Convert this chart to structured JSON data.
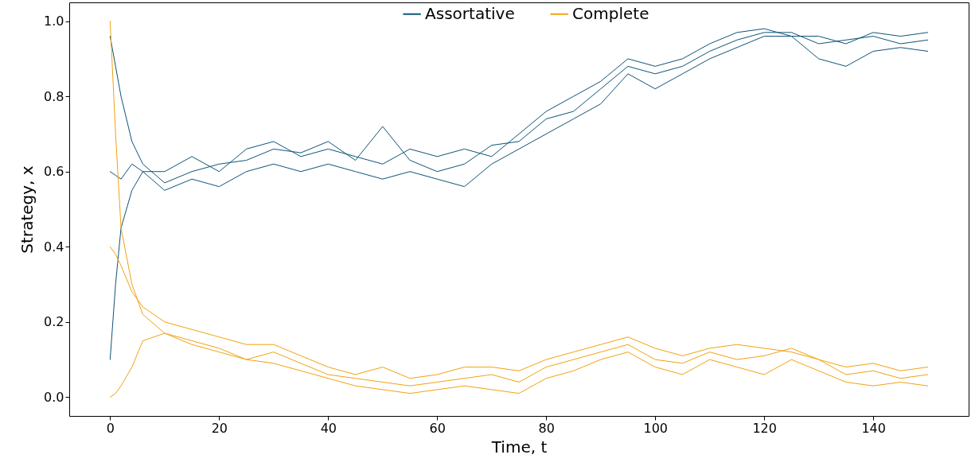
{
  "chart_data": {
    "type": "line",
    "xlabel": "Time, t",
    "ylabel": "Strategy, x",
    "x": [
      0,
      1,
      2,
      4,
      6,
      10,
      15,
      20,
      25,
      30,
      35,
      40,
      45,
      50,
      55,
      60,
      65,
      70,
      75,
      80,
      85,
      90,
      95,
      100,
      105,
      110,
      115,
      120,
      125,
      130,
      135,
      140,
      145,
      150
    ],
    "series": [
      {
        "name": "Assortative",
        "color": "#0d5478",
        "values": [
          0.96,
          0.88,
          0.8,
          0.68,
          0.62,
          0.57,
          0.6,
          0.62,
          0.63,
          0.66,
          0.65,
          0.68,
          0.63,
          0.72,
          0.63,
          0.6,
          0.62,
          0.67,
          0.68,
          0.74,
          0.76,
          0.82,
          0.88,
          0.86,
          0.88,
          0.92,
          0.95,
          0.97,
          0.97,
          0.94,
          0.95,
          0.96,
          0.94,
          0.95
        ]
      },
      {
        "color": "#0d5478",
        "values": [
          0.1,
          0.3,
          0.45,
          0.55,
          0.6,
          0.55,
          0.58,
          0.56,
          0.6,
          0.62,
          0.6,
          0.62,
          0.6,
          0.58,
          0.6,
          0.58,
          0.56,
          0.62,
          0.66,
          0.7,
          0.74,
          0.78,
          0.86,
          0.82,
          0.86,
          0.9,
          0.93,
          0.96,
          0.96,
          0.9,
          0.88,
          0.92,
          0.93,
          0.92
        ]
      },
      {
        "color": "#0d5478",
        "values": [
          0.6,
          0.59,
          0.58,
          0.62,
          0.6,
          0.6,
          0.64,
          0.6,
          0.66,
          0.68,
          0.64,
          0.66,
          0.64,
          0.62,
          0.66,
          0.64,
          0.66,
          0.64,
          0.7,
          0.76,
          0.8,
          0.84,
          0.9,
          0.88,
          0.9,
          0.94,
          0.97,
          0.98,
          0.96,
          0.96,
          0.94,
          0.97,
          0.96,
          0.97
        ]
      },
      {
        "name": "Complete",
        "color": "#f2a20e",
        "values": [
          1.0,
          0.7,
          0.45,
          0.3,
          0.22,
          0.17,
          0.15,
          0.13,
          0.1,
          0.12,
          0.09,
          0.06,
          0.05,
          0.04,
          0.03,
          0.04,
          0.05,
          0.06,
          0.04,
          0.08,
          0.1,
          0.12,
          0.14,
          0.1,
          0.09,
          0.12,
          0.1,
          0.11,
          0.13,
          0.1,
          0.06,
          0.07,
          0.05,
          0.06
        ]
      },
      {
        "color": "#f2a20e",
        "values": [
          0.0,
          0.01,
          0.03,
          0.08,
          0.15,
          0.17,
          0.14,
          0.12,
          0.1,
          0.09,
          0.07,
          0.05,
          0.03,
          0.02,
          0.01,
          0.02,
          0.03,
          0.02,
          0.01,
          0.05,
          0.07,
          0.1,
          0.12,
          0.08,
          0.06,
          0.1,
          0.08,
          0.06,
          0.1,
          0.07,
          0.04,
          0.03,
          0.04,
          0.03
        ]
      },
      {
        "color": "#f2a20e",
        "values": [
          0.4,
          0.38,
          0.35,
          0.28,
          0.24,
          0.2,
          0.18,
          0.16,
          0.14,
          0.14,
          0.11,
          0.08,
          0.06,
          0.08,
          0.05,
          0.06,
          0.08,
          0.08,
          0.07,
          0.1,
          0.12,
          0.14,
          0.16,
          0.13,
          0.11,
          0.13,
          0.14,
          0.13,
          0.12,
          0.1,
          0.08,
          0.09,
          0.07,
          0.08
        ]
      }
    ],
    "xlim": [
      -7.5,
      157.5
    ],
    "xticks": [
      0,
      20,
      40,
      60,
      80,
      100,
      120,
      140
    ],
    "ylim": [
      -0.05,
      1.05
    ],
    "yticks": [
      {
        "value": 0,
        "label": "0.0"
      },
      {
        "value": 0.2,
        "label": "0.2"
      },
      {
        "value": 0.4,
        "label": "0.4"
      },
      {
        "value": 0.6,
        "label": "0.6"
      },
      {
        "value": 0.8,
        "label": "0.8"
      },
      {
        "value": 1,
        "label": "1.0"
      }
    ],
    "legend": "top",
    "line_style": "solid"
  }
}
